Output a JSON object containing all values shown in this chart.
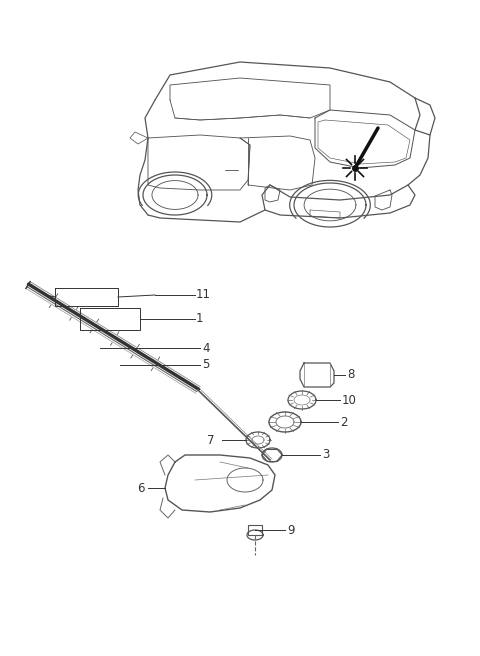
{
  "bg_color": "#ffffff",
  "line_color": "#444444",
  "label_color": "#333333",
  "font_size": 8.5,
  "car": {
    "color": "#555555",
    "lw": 0.9
  },
  "wiper_blade_color": "#222222",
  "component_color": "#555555"
}
